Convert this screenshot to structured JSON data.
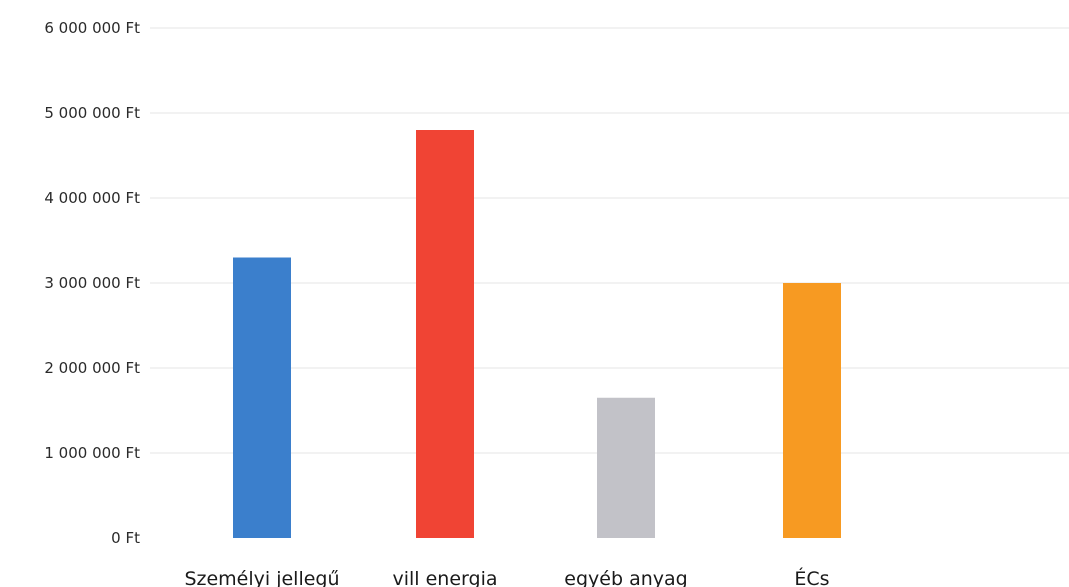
{
  "chart_data": {
    "type": "bar",
    "title": "",
    "xlabel": "",
    "ylabel": "",
    "categories": [
      "Személyi jellegű",
      "vill energia",
      "egyéb anyag",
      "ÉCs"
    ],
    "values": [
      3300000,
      4800000,
      1650000,
      3000000
    ],
    "colors": [
      "#3b7fcc",
      "#f04434",
      "#c2c2c8",
      "#f79a22"
    ],
    "ylim": [
      0,
      6000000
    ],
    "y_ticks": [
      0,
      1000000,
      2000000,
      3000000,
      4000000,
      5000000,
      6000000
    ],
    "y_tick_labels": [
      "0 Ft",
      "1 000 000 Ft",
      "2 000 000 Ft",
      "3 000 000 Ft",
      "4 000 000 Ft",
      "5 000 000 Ft",
      "6 000 000 Ft"
    ],
    "grid": true,
    "legend": "none"
  }
}
